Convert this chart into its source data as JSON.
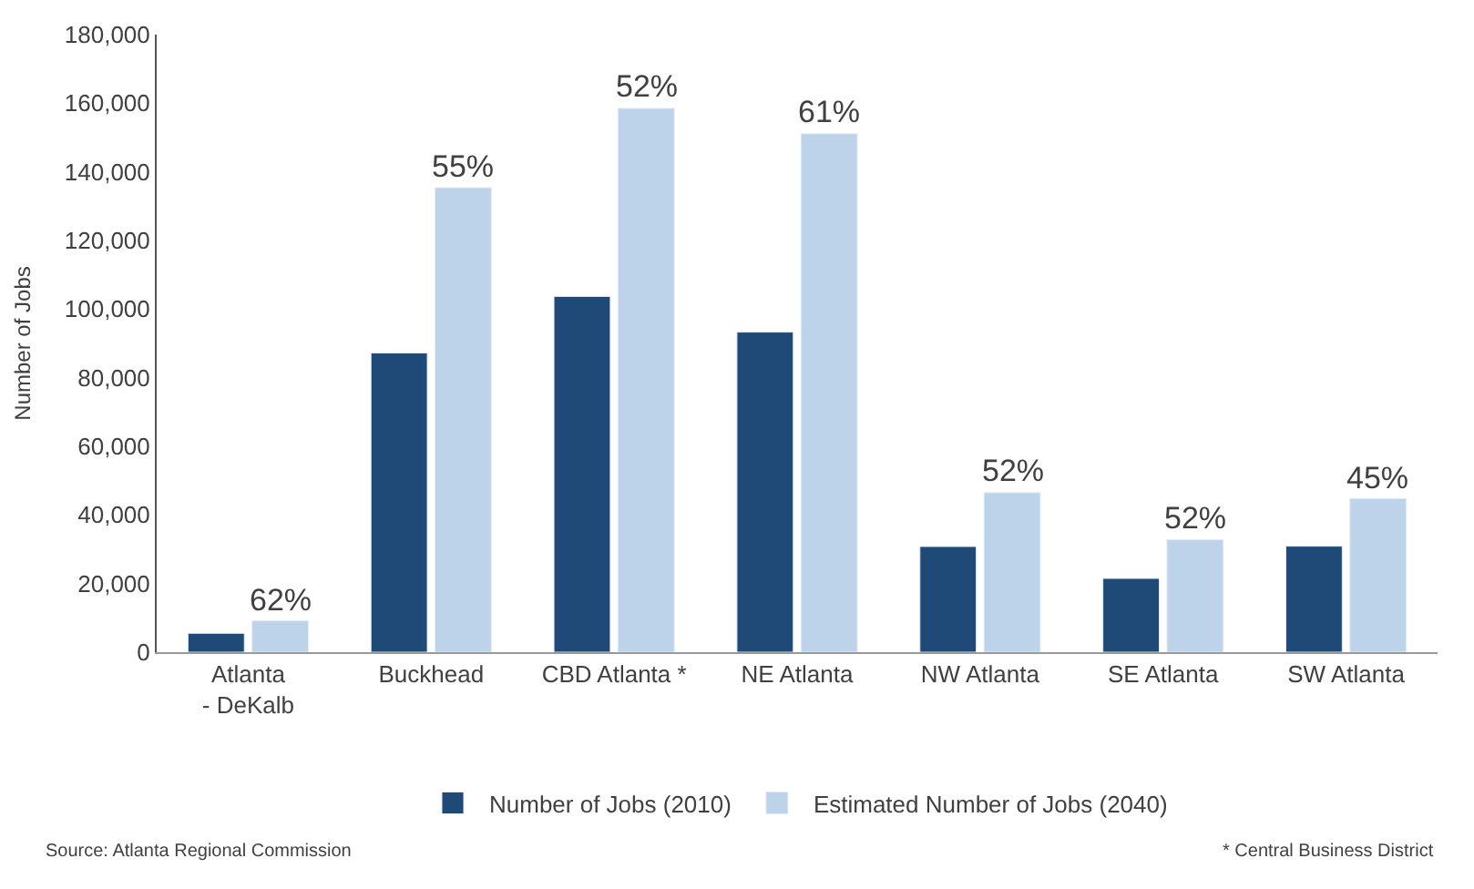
{
  "chart_data": {
    "type": "bar",
    "ylabel": "Number of Jobs",
    "categories": [
      "Atlanta - DeKalb",
      "Buckhead",
      "CBD Atlanta *",
      "NE Atlanta",
      "NW Atlanta",
      "SE Atlanta",
      "SW Atlanta"
    ],
    "series": [
      {
        "name": "Number of Jobs (2010)",
        "color": "#1f4a78",
        "values": [
          5500,
          87200,
          103700,
          93300,
          30800,
          21500,
          30900
        ]
      },
      {
        "name": "Estimated Number of Jobs (2040)",
        "color": "#bcd3ea",
        "values": [
          9200,
          135400,
          158500,
          151100,
          46500,
          32800,
          44800
        ]
      }
    ],
    "ylim": [
      0,
      180000
    ],
    "yticks": [
      {
        "value": 0,
        "label": "0"
      },
      {
        "value": 20000,
        "label": "20,000"
      },
      {
        "value": 40000,
        "label": "40,000"
      },
      {
        "value": 60000,
        "label": "60,000"
      },
      {
        "value": 80000,
        "label": "80,000"
      },
      {
        "value": 100000,
        "label": "100,000"
      },
      {
        "value": 120000,
        "label": "120,000"
      },
      {
        "value": 140000,
        "label": "140,000"
      },
      {
        "value": 160000,
        "label": "160,000"
      },
      {
        "value": 180000,
        "label": "180,000"
      }
    ],
    "legend": "bottom",
    "annotations": [
      {
        "text": "62%",
        "x": "Atlanta - DeKalb",
        "y": 9200
      },
      {
        "text": "55%",
        "x": "Buckhead",
        "y": 135400
      },
      {
        "text": "52%",
        "x": "CBD Atlanta *",
        "y": 158500
      },
      {
        "text": "61%",
        "x": "NE Atlanta",
        "y": 151100
      },
      {
        "text": "52%",
        "x": "NW Atlanta",
        "y": 46500
      },
      {
        "text": "52%",
        "x": "SE Atlanta",
        "y": 32800
      },
      {
        "text": "45%",
        "x": "SW Atlanta",
        "y": 44800
      },
      "Source: Atlanta Regional Commission",
      "* Central Business District"
    ]
  }
}
